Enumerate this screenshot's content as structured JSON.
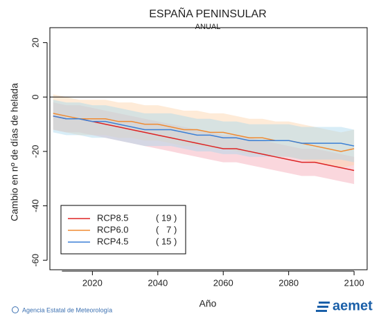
{
  "chart_data": {
    "type": "line",
    "title": "ESPAÑA PENINSULAR",
    "subtitle": "ANUAL",
    "xlabel": "Año",
    "ylabel": "Cambio en nº de días de helada",
    "source": "Agencia Estatal de Meteorología",
    "logo_text": "aemet",
    "x": [
      2008,
      2012,
      2016,
      2020,
      2024,
      2028,
      2032,
      2036,
      2040,
      2044,
      2048,
      2052,
      2056,
      2060,
      2064,
      2068,
      2072,
      2076,
      2080,
      2084,
      2088,
      2092,
      2096,
      2100
    ],
    "xlim": [
      2007,
      2104
    ],
    "xticks": [
      2020,
      2040,
      2060,
      2080,
      2100
    ],
    "ylim": [
      -63.5,
      25.5
    ],
    "yticks": [
      20,
      0,
      -20,
      -40,
      -60
    ],
    "hline": 0,
    "series": [
      {
        "name": "RCP8.5",
        "legend_note": "( 19 )",
        "color": "#dd2222",
        "band_color": "#f4a6b4",
        "values": [
          -7,
          -8,
          -8,
          -9,
          -10,
          -11,
          -12,
          -13,
          -14,
          -15,
          -16,
          -17,
          -18,
          -19,
          -19,
          -20,
          -21,
          -22,
          -23,
          -24,
          -24,
          -25,
          -26,
          -27
        ],
        "upper": [
          -2,
          -3,
          -3,
          -4,
          -5,
          -6,
          -7,
          -8,
          -9,
          -10,
          -11,
          -12,
          -13,
          -14,
          -14,
          -15,
          -16,
          -17,
          -18,
          -19,
          -19,
          -20,
          -21,
          -22
        ],
        "lower": [
          -12,
          -13,
          -13,
          -14,
          -15,
          -16,
          -17,
          -18,
          -19,
          -20,
          -21,
          -22,
          -23,
          -24,
          -24,
          -25,
          -26,
          -27,
          -28,
          -29,
          -29,
          -30,
          -31,
          -32
        ]
      },
      {
        "name": "RCP6.0",
        "legend_note": "(   7 )",
        "color": "#f08a30",
        "band_color": "#fcd3a8",
        "values": [
          -6,
          -7,
          -8,
          -8,
          -8,
          -9,
          -9,
          -10,
          -10,
          -11,
          -12,
          -12,
          -13,
          -13,
          -14,
          -15,
          -15,
          -16,
          -16,
          -17,
          -18,
          -19,
          -20,
          -19
        ],
        "upper": [
          1,
          0,
          -1,
          -1,
          -1,
          -2,
          -2,
          -3,
          -3,
          -4,
          -5,
          -5,
          -6,
          -6,
          -7,
          -8,
          -8,
          -9,
          -9,
          -10,
          -11,
          -12,
          -13,
          -12
        ],
        "lower": [
          -12,
          -13,
          -14,
          -14,
          -14,
          -15,
          -15,
          -16,
          -16,
          -17,
          -18,
          -18,
          -19,
          -19,
          -20,
          -21,
          -21,
          -22,
          -22,
          -23,
          -24,
          -25,
          -26,
          -25
        ]
      },
      {
        "name": "RCP4.5",
        "legend_note": "( 15 )",
        "color": "#3a7fd5",
        "band_color": "#a9d8ee",
        "values": [
          -7,
          -8,
          -8,
          -9,
          -9,
          -10,
          -11,
          -12,
          -12,
          -12,
          -13,
          -14,
          -14,
          -15,
          -15,
          -16,
          -16,
          -16,
          -16,
          -17,
          -17,
          -17,
          -17,
          -18
        ],
        "upper": [
          -1,
          -2,
          -2,
          -3,
          -3,
          -4,
          -5,
          -6,
          -6,
          -6,
          -7,
          -8,
          -8,
          -9,
          -9,
          -10,
          -10,
          -10,
          -10,
          -11,
          -11,
          -11,
          -11,
          -12
        ],
        "lower": [
          -13,
          -14,
          -14,
          -15,
          -15,
          -16,
          -17,
          -18,
          -18,
          -18,
          -19,
          -20,
          -20,
          -21,
          -21,
          -22,
          -22,
          -22,
          -22,
          -23,
          -23,
          -23,
          -23,
          -24
        ]
      }
    ]
  }
}
